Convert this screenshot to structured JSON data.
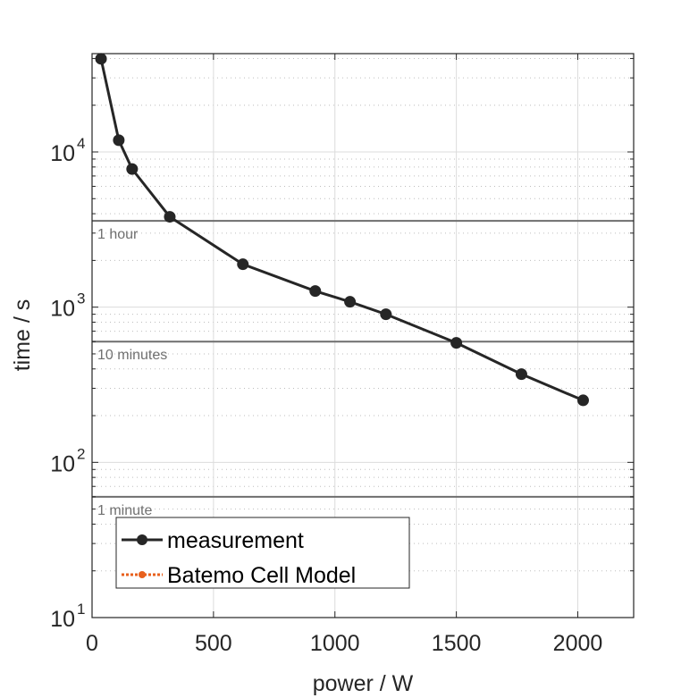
{
  "chart_data": {
    "type": "line",
    "xlabel": "power / W",
    "ylabel": "time / s",
    "xlim": [
      0,
      2230
    ],
    "ylim": [
      10,
      43000
    ],
    "yscale": "log",
    "grid": true,
    "xticks": [
      0,
      500,
      1000,
      1500,
      2000
    ],
    "xtick_labels": [
      "0",
      "500",
      "1000",
      "1500",
      "2000"
    ],
    "yticks": [
      10,
      100,
      1000,
      10000
    ],
    "ytick_labels": [
      {
        "base": "10",
        "exp": "1"
      },
      {
        "base": "10",
        "exp": "2"
      },
      {
        "base": "10",
        "exp": "3"
      },
      {
        "base": "10",
        "exp": "4"
      }
    ],
    "series": [
      {
        "name": "measurement",
        "color": "#262626",
        "x": [
          37,
          110,
          165,
          320,
          621,
          919,
          1062,
          1210,
          1500,
          1768,
          2022
        ],
        "y": [
          39800,
          11900,
          7760,
          3820,
          1890,
          1270,
          1083,
          900,
          589,
          370,
          251
        ]
      },
      {
        "name": "Batemo Cell Model",
        "color": "#e8601c",
        "x": [],
        "y": []
      }
    ],
    "reference_lines": [
      {
        "label": "1 hour",
        "y": 3600
      },
      {
        "label": "10 minutes",
        "y": 600
      },
      {
        "label": "1 minute",
        "y": 60
      }
    ],
    "legend_placement": "bottom-left"
  }
}
